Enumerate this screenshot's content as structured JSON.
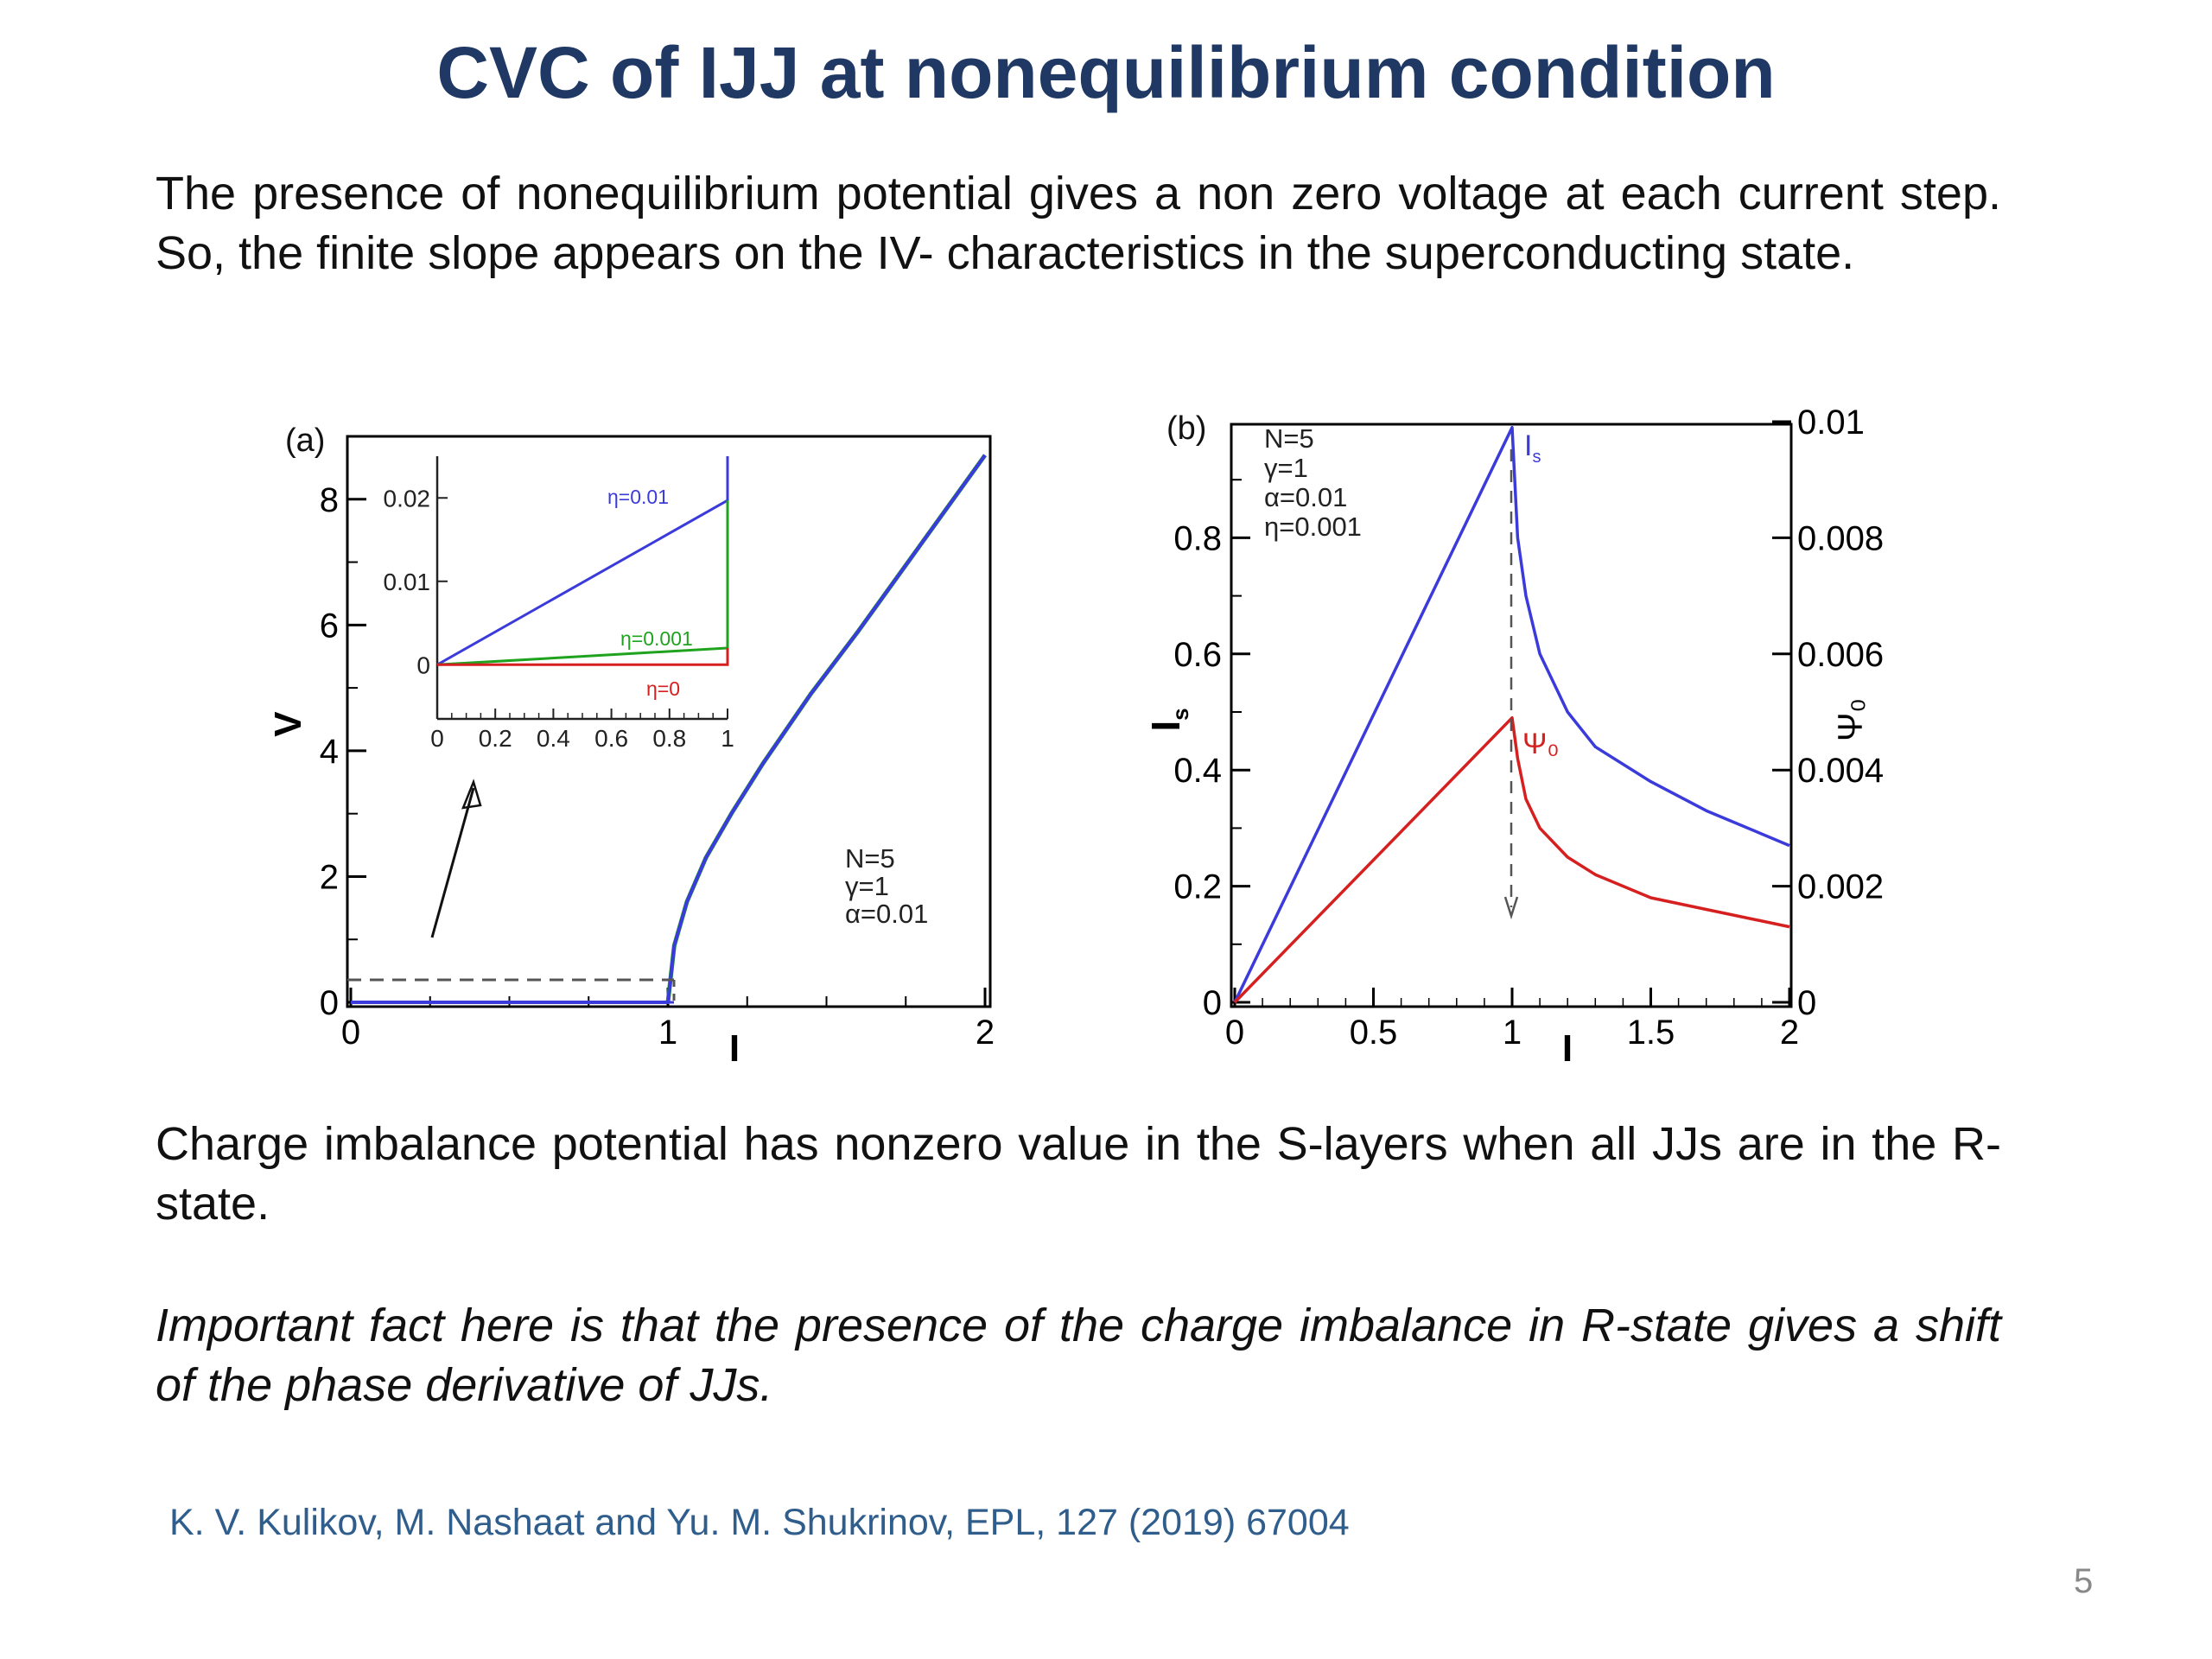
{
  "slide": {
    "title": "CVC of IJJ at nonequilibrium condition",
    "paragraph1": "The presence of nonequilibrium potential gives a non zero voltage at each current step. So, the finite slope appears on the IV- characteristics in the superconducting state.",
    "paragraph2": "Charge imbalance potential has nonzero value in the S-layers when all JJs are in the R-state.",
    "paragraph3": "Important fact here is that the presence of the charge imbalance in R-state gives a shift of the phase derivative of JJs.",
    "reference": "K. V. Kulikov, M. Nashaat and Yu. M. Shukrinov, EPL, 127 (2019) 67004",
    "page_number": "5"
  },
  "colors": {
    "title": "#1f3864",
    "reference": "#2f5d8c",
    "blue": "#3b3bdc",
    "green": "#1fa31f",
    "red": "#d62020"
  },
  "chart_data": [
    {
      "type": "line",
      "panel_label": "(a)",
      "xlabel": "I",
      "ylabel": "V",
      "xlim": [
        0,
        2
      ],
      "ylim": [
        0,
        9
      ],
      "xticks": [
        "0",
        "1",
        "2"
      ],
      "yticks": [
        "0",
        "2",
        "4",
        "6",
        "8"
      ],
      "params": [
        "N=5",
        "γ=1",
        "α=0.01"
      ],
      "series": [
        {
          "color": "#3b3bdc",
          "x": [
            0,
            1,
            1.0,
            1.02,
            1.06,
            1.12,
            1.2,
            1.3,
            1.45,
            1.6,
            1.8,
            2.0
          ],
          "y": [
            0,
            0,
            0.0,
            0.9,
            1.6,
            2.3,
            3.0,
            3.8,
            4.9,
            5.9,
            7.3,
            8.7
          ]
        },
        {
          "color": "#1fa31f",
          "x": [
            1.0,
            1.02,
            1.06,
            1.12,
            1.2,
            1.3,
            1.45,
            1.6,
            1.8,
            2.0
          ],
          "y": [
            0.0,
            0.9,
            1.6,
            2.3,
            3.0,
            3.8,
            4.9,
            5.9,
            7.3,
            8.7
          ]
        }
      ],
      "inset": {
        "xlim": [
          0,
          1
        ],
        "ylim": [
          -0.0065,
          0.025
        ],
        "xticks": [
          "0",
          "0.2",
          "0.4",
          "0.6",
          "0.8",
          "1"
        ],
        "yticks": [
          "0",
          "0.01",
          "0.02"
        ],
        "series": [
          {
            "name": "η=0.01",
            "color": "#3b3bdc",
            "x": [
              0,
              1,
              1,
              1
            ],
            "y": [
              0,
              0.0197,
              0.0197,
              0.025
            ]
          },
          {
            "name": "η=0.001",
            "color": "#1fa31f",
            "x": [
              0,
              1,
              1
            ],
            "y": [
              0,
              0.002,
              0.0197
            ]
          },
          {
            "name": "η=0",
            "color": "#d62020",
            "x": [
              0,
              1,
              1
            ],
            "y": [
              0,
              0,
              0.002
            ]
          }
        ]
      }
    },
    {
      "type": "line",
      "panel_label": "(b)",
      "xlabel": "I",
      "ylabel": "I_s",
      "y2label": "Ψ₀",
      "xlim": [
        0,
        2
      ],
      "ylim": [
        0,
        1
      ],
      "y2lim": [
        0,
        0.01
      ],
      "xticks": [
        "0",
        "0.5",
        "1",
        "1.5",
        "2"
      ],
      "yticks": [
        "0",
        "0.2",
        "0.4",
        "0.6",
        "0.8"
      ],
      "y2ticks": [
        "0",
        "0.002",
        "0.004",
        "0.006",
        "0.008",
        "0.01"
      ],
      "params": [
        "N=5",
        "γ=1",
        "α=0.01",
        "η=0.001"
      ],
      "series": [
        {
          "name": "I_s",
          "color": "#3b3bdc",
          "axis": "left",
          "x": [
            0,
            1,
            1.02,
            1.05,
            1.1,
            1.2,
            1.3,
            1.5,
            1.7,
            2.0
          ],
          "y": [
            0,
            0.99,
            0.8,
            0.7,
            0.6,
            0.5,
            0.44,
            0.38,
            0.33,
            0.27
          ]
        },
        {
          "name": "Ψ₀",
          "color": "#d62020",
          "axis": "right",
          "x": [
            0,
            1,
            1.02,
            1.05,
            1.1,
            1.2,
            1.3,
            1.5,
            1.7,
            2.0
          ],
          "y": [
            0,
            0.0049,
            0.0042,
            0.0035,
            0.003,
            0.0025,
            0.0022,
            0.0018,
            0.0016,
            0.0013
          ]
        }
      ]
    }
  ]
}
